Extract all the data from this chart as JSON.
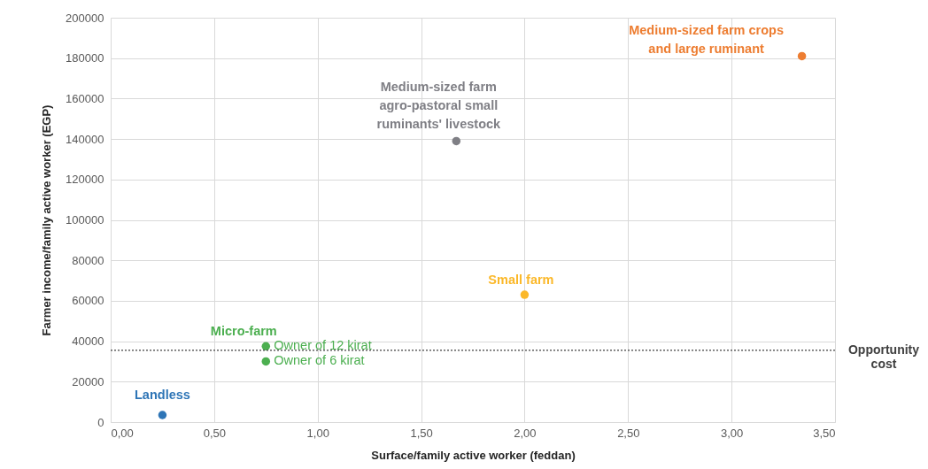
{
  "chart_data": {
    "type": "scatter",
    "xlabel": "Surface/family active worker (feddan)",
    "ylabel": "Farmer income/family active worker (EGP)",
    "xlim": [
      0,
      3.5
    ],
    "ylim": [
      0,
      200000
    ],
    "xticks": [
      {
        "value": 0,
        "label": "0,00"
      },
      {
        "value": 0.5,
        "label": "0,50"
      },
      {
        "value": 1,
        "label": "1,00"
      },
      {
        "value": 1.5,
        "label": "1,50"
      },
      {
        "value": 2,
        "label": "2,00"
      },
      {
        "value": 2.5,
        "label": "2,50"
      },
      {
        "value": 3,
        "label": "3,00"
      },
      {
        "value": 3.5,
        "label": "3,50"
      }
    ],
    "yticks": [
      0,
      20000,
      40000,
      60000,
      80000,
      100000,
      120000,
      140000,
      160000,
      180000,
      200000
    ],
    "grid": true,
    "marker": "circle",
    "series": [
      {
        "name": "Landless",
        "color": "#2e75b6",
        "x": [
          0.25
        ],
        "values": [
          3500
        ]
      },
      {
        "name": "Micro-farm",
        "color": "#4caf50",
        "x": [
          0.75,
          0.75
        ],
        "values": [
          37500,
          30000
        ],
        "value_labels": [
          "Owner of 12 kirat",
          "Owner of 6 kirat"
        ]
      },
      {
        "name": "Small farm",
        "color": "#fbb829",
        "x": [
          2.0
        ],
        "values": [
          63000
        ]
      },
      {
        "name": "Medium-sized farm\nagro-pastoral small\nruminants' livestock",
        "color": "#7f7f85",
        "x": [
          1.67
        ],
        "values": [
          139000
        ]
      },
      {
        "name": "Medium-sized farm crops\nand large ruminant",
        "color": "#ed7d31",
        "x": [
          3.34
        ],
        "values": [
          181000
        ]
      }
    ],
    "ref_lines": [
      {
        "axis": "y",
        "value": 35500,
        "label": "Opportunity cost",
        "line_style": "dotted",
        "color": "#404040"
      }
    ]
  }
}
